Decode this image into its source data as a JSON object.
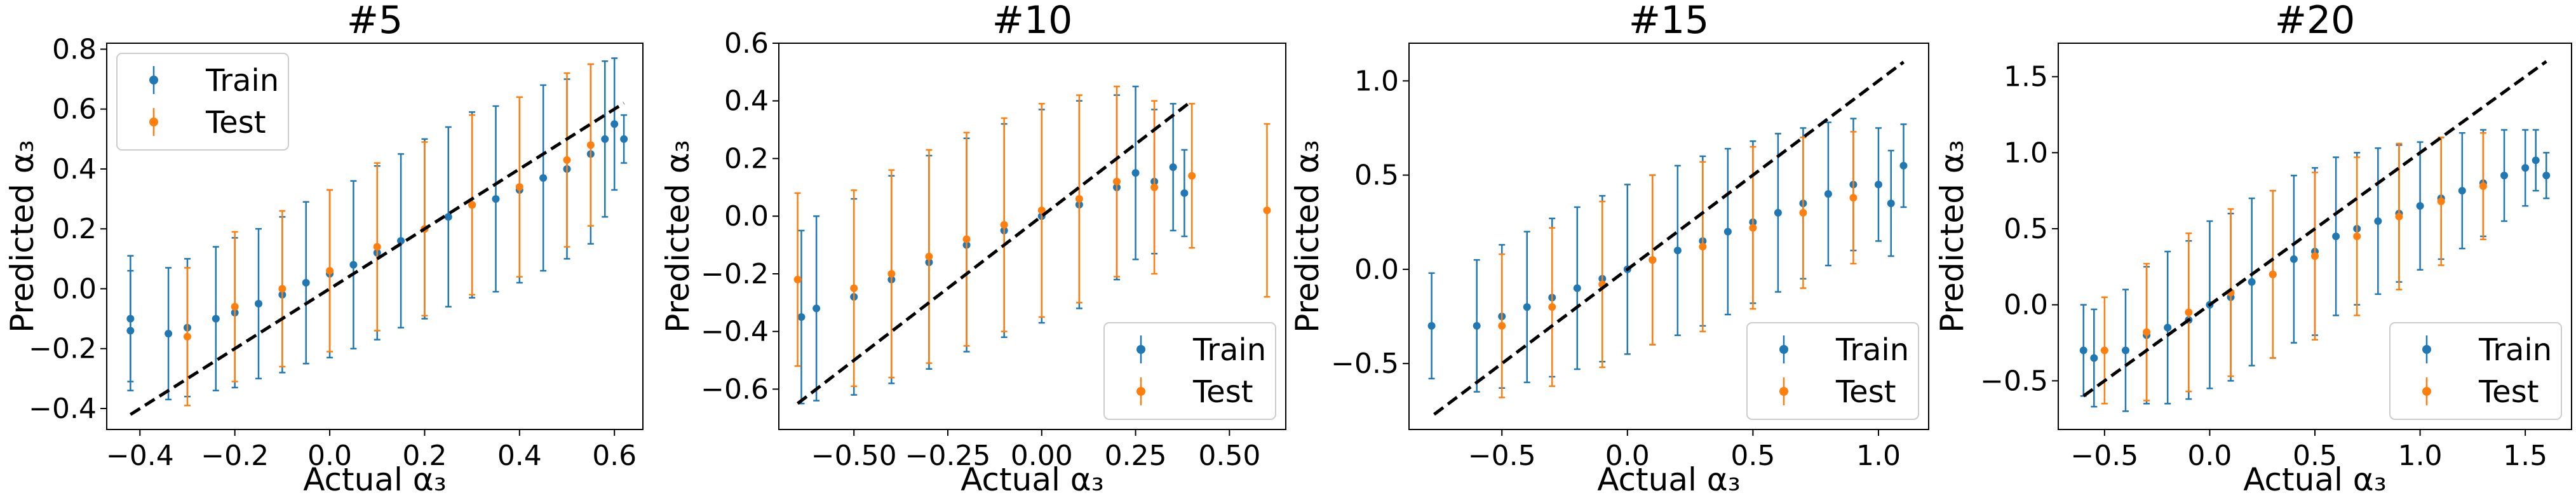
{
  "colors": {
    "train": "#1f77b4",
    "test": "#ff7f0e",
    "identity_line": "#000000"
  },
  "chart_data": [
    {
      "type": "scatter",
      "title": "#5",
      "xlabel": "Actual α₃",
      "ylabel": "Predicted α₃",
      "xlim": [
        -0.47,
        0.66
      ],
      "ylim": [
        -0.47,
        0.82
      ],
      "xticks": [
        -0.4,
        -0.2,
        0.0,
        0.2,
        0.4,
        0.6
      ],
      "xtick_labels": [
        "−0.4",
        "−0.2",
        "0.0",
        "0.2",
        "0.4",
        "0.6"
      ],
      "yticks": [
        -0.4,
        -0.2,
        0.0,
        0.2,
        0.4,
        0.6,
        0.8
      ],
      "ytick_labels": [
        "−0.4",
        "−0.2",
        "0.0",
        "0.2",
        "0.4",
        "0.6",
        "0.8"
      ],
      "legend": {
        "position": "upper-left",
        "entries": [
          "Train",
          "Test"
        ]
      },
      "identity_line": {
        "from": [
          -0.42,
          -0.42
        ],
        "to": [
          0.62,
          0.62
        ]
      },
      "series": [
        {
          "name": "Train",
          "x": [
            -0.42,
            -0.42,
            -0.34,
            -0.3,
            -0.24,
            -0.2,
            -0.15,
            -0.1,
            -0.05,
            0.0,
            0.05,
            0.1,
            0.15,
            0.2,
            0.25,
            0.3,
            0.35,
            0.4,
            0.45,
            0.5,
            0.55,
            0.58,
            0.6,
            0.62
          ],
          "y": [
            -0.1,
            -0.14,
            -0.15,
            -0.13,
            -0.1,
            -0.08,
            -0.05,
            -0.02,
            0.02,
            0.05,
            0.08,
            0.12,
            0.16,
            0.2,
            0.24,
            0.28,
            0.3,
            0.33,
            0.37,
            0.4,
            0.45,
            0.5,
            0.55,
            0.5
          ],
          "yerr": [
            0.21,
            0.2,
            0.22,
            0.23,
            0.24,
            0.25,
            0.25,
            0.26,
            0.27,
            0.28,
            0.28,
            0.29,
            0.29,
            0.3,
            0.3,
            0.31,
            0.31,
            0.31,
            0.31,
            0.3,
            0.3,
            0.26,
            0.22,
            0.08
          ]
        },
        {
          "name": "Test",
          "x": [
            -0.3,
            -0.2,
            -0.1,
            0.0,
            0.1,
            0.2,
            0.3,
            0.4,
            0.5,
            0.55
          ],
          "y": [
            -0.16,
            -0.06,
            0.0,
            0.06,
            0.14,
            0.2,
            0.28,
            0.34,
            0.43,
            0.48
          ],
          "yerr": [
            0.23,
            0.25,
            0.26,
            0.27,
            0.28,
            0.29,
            0.3,
            0.3,
            0.29,
            0.27
          ]
        }
      ]
    },
    {
      "type": "scatter",
      "title": "#10",
      "xlabel": "Actual α₃",
      "ylabel": "Predicted α₃",
      "xlim": [
        -0.7,
        0.65
      ],
      "ylim": [
        -0.74,
        0.6
      ],
      "xticks": [
        -0.5,
        -0.25,
        0.0,
        0.25,
        0.5
      ],
      "xtick_labels": [
        "−0.50",
        "−0.25",
        "0.00",
        "0.25",
        "0.50"
      ],
      "yticks": [
        -0.6,
        -0.4,
        -0.2,
        0.0,
        0.2,
        0.4,
        0.6
      ],
      "ytick_labels": [
        "−0.6",
        "−0.4",
        "−0.2",
        "0.0",
        "0.2",
        "0.4",
        "0.6"
      ],
      "legend": {
        "position": "lower-right",
        "entries": [
          "Train",
          "Test"
        ]
      },
      "identity_line": {
        "from": [
          -0.65,
          -0.65
        ],
        "to": [
          0.4,
          0.4
        ]
      },
      "series": [
        {
          "name": "Train",
          "x": [
            -0.64,
            -0.6,
            -0.5,
            -0.4,
            -0.3,
            -0.2,
            -0.1,
            0.0,
            0.1,
            0.2,
            0.25,
            0.3,
            0.35,
            0.38
          ],
          "y": [
            -0.35,
            -0.32,
            -0.28,
            -0.22,
            -0.16,
            -0.1,
            -0.05,
            0.0,
            0.04,
            0.1,
            0.15,
            0.12,
            0.17,
            0.08
          ],
          "yerr": [
            0.3,
            0.32,
            0.34,
            0.36,
            0.37,
            0.37,
            0.37,
            0.37,
            0.36,
            0.32,
            0.3,
            0.25,
            0.22,
            0.15
          ]
        },
        {
          "name": "Test",
          "x": [
            -0.65,
            -0.5,
            -0.4,
            -0.3,
            -0.2,
            -0.1,
            0.0,
            0.1,
            0.2,
            0.3,
            0.4,
            0.6
          ],
          "y": [
            -0.22,
            -0.25,
            -0.2,
            -0.14,
            -0.08,
            -0.03,
            0.02,
            0.06,
            0.12,
            0.1,
            0.14,
            0.02
          ],
          "yerr": [
            0.3,
            0.34,
            0.36,
            0.37,
            0.37,
            0.37,
            0.37,
            0.36,
            0.33,
            0.3,
            0.25,
            0.3
          ]
        }
      ]
    },
    {
      "type": "scatter",
      "title": "#15",
      "xlabel": "Actual α₃",
      "ylabel": "Predicted α₃",
      "xlim": [
        -0.87,
        1.2
      ],
      "ylim": [
        -0.85,
        1.2
      ],
      "xticks": [
        -0.5,
        0.0,
        0.5,
        1.0
      ],
      "xtick_labels": [
        "−0.5",
        "0.0",
        "0.5",
        "1.0"
      ],
      "yticks": [
        -0.5,
        0.0,
        0.5,
        1.0
      ],
      "ytick_labels": [
        "−0.5",
        "0.0",
        "0.5",
        "1.0"
      ],
      "legend": {
        "position": "lower-right",
        "entries": [
          "Train",
          "Test"
        ]
      },
      "identity_line": {
        "from": [
          -0.77,
          -0.77
        ],
        "to": [
          1.1,
          1.1
        ]
      },
      "series": [
        {
          "name": "Train",
          "x": [
            -0.78,
            -0.6,
            -0.5,
            -0.4,
            -0.3,
            -0.2,
            -0.1,
            0.0,
            0.1,
            0.2,
            0.3,
            0.4,
            0.5,
            0.6,
            0.7,
            0.8,
            0.9,
            1.0,
            1.05,
            1.1
          ],
          "y": [
            -0.3,
            -0.3,
            -0.25,
            -0.2,
            -0.15,
            -0.1,
            -0.05,
            0.0,
            0.05,
            0.1,
            0.15,
            0.2,
            0.25,
            0.3,
            0.35,
            0.4,
            0.45,
            0.45,
            0.35,
            0.55
          ],
          "yerr": [
            0.28,
            0.35,
            0.38,
            0.4,
            0.42,
            0.43,
            0.44,
            0.45,
            0.45,
            0.45,
            0.45,
            0.44,
            0.43,
            0.42,
            0.4,
            0.38,
            0.35,
            0.3,
            0.28,
            0.22
          ]
        },
        {
          "name": "Test",
          "x": [
            -0.5,
            -0.3,
            -0.1,
            0.1,
            0.3,
            0.5,
            0.7,
            0.9
          ],
          "y": [
            -0.3,
            -0.2,
            -0.08,
            0.05,
            0.12,
            0.22,
            0.3,
            0.38
          ],
          "yerr": [
            0.38,
            0.42,
            0.44,
            0.45,
            0.45,
            0.43,
            0.4,
            0.35
          ]
        }
      ]
    },
    {
      "type": "scatter",
      "title": "#20",
      "xlabel": "Actual α₃",
      "ylabel": "Predicted α₃",
      "xlim": [
        -0.72,
        1.72
      ],
      "ylim": [
        -0.82,
        1.72
      ],
      "xticks": [
        -0.5,
        0.0,
        0.5,
        1.0,
        1.5
      ],
      "xtick_labels": [
        "−0.5",
        "0.0",
        "0.5",
        "1.0",
        "1.5"
      ],
      "yticks": [
        -0.5,
        0.0,
        0.5,
        1.0,
        1.5
      ],
      "ytick_labels": [
        "−0.5",
        "0.0",
        "0.5",
        "1.0",
        "1.5"
      ],
      "legend": {
        "position": "lower-right",
        "entries": [
          "Train",
          "Test"
        ]
      },
      "identity_line": {
        "from": [
          -0.6,
          -0.6
        ],
        "to": [
          1.6,
          1.6
        ]
      },
      "series": [
        {
          "name": "Train",
          "x": [
            -0.6,
            -0.55,
            -0.4,
            -0.3,
            -0.2,
            -0.1,
            0.0,
            0.1,
            0.2,
            0.3,
            0.4,
            0.5,
            0.6,
            0.7,
            0.8,
            0.9,
            1.0,
            1.1,
            1.2,
            1.3,
            1.4,
            1.5,
            1.55,
            1.6
          ],
          "y": [
            -0.3,
            -0.35,
            -0.3,
            -0.2,
            -0.15,
            -0.1,
            0.0,
            0.05,
            0.15,
            0.2,
            0.3,
            0.35,
            0.45,
            0.5,
            0.55,
            0.6,
            0.65,
            0.7,
            0.75,
            0.8,
            0.85,
            0.9,
            0.95,
            0.85
          ],
          "yerr": [
            0.3,
            0.32,
            0.4,
            0.45,
            0.5,
            0.52,
            0.55,
            0.55,
            0.55,
            0.55,
            0.55,
            0.55,
            0.52,
            0.5,
            0.48,
            0.45,
            0.42,
            0.4,
            0.38,
            0.35,
            0.3,
            0.25,
            0.2,
            0.15
          ]
        },
        {
          "name": "Test",
          "x": [
            -0.5,
            -0.3,
            -0.1,
            0.1,
            0.3,
            0.5,
            0.7,
            0.9,
            1.1,
            1.3
          ],
          "y": [
            -0.3,
            -0.18,
            -0.05,
            0.08,
            0.2,
            0.32,
            0.45,
            0.58,
            0.68,
            0.78
          ],
          "yerr": [
            0.35,
            0.45,
            0.52,
            0.55,
            0.55,
            0.55,
            0.52,
            0.48,
            0.42,
            0.35
          ]
        }
      ]
    }
  ]
}
